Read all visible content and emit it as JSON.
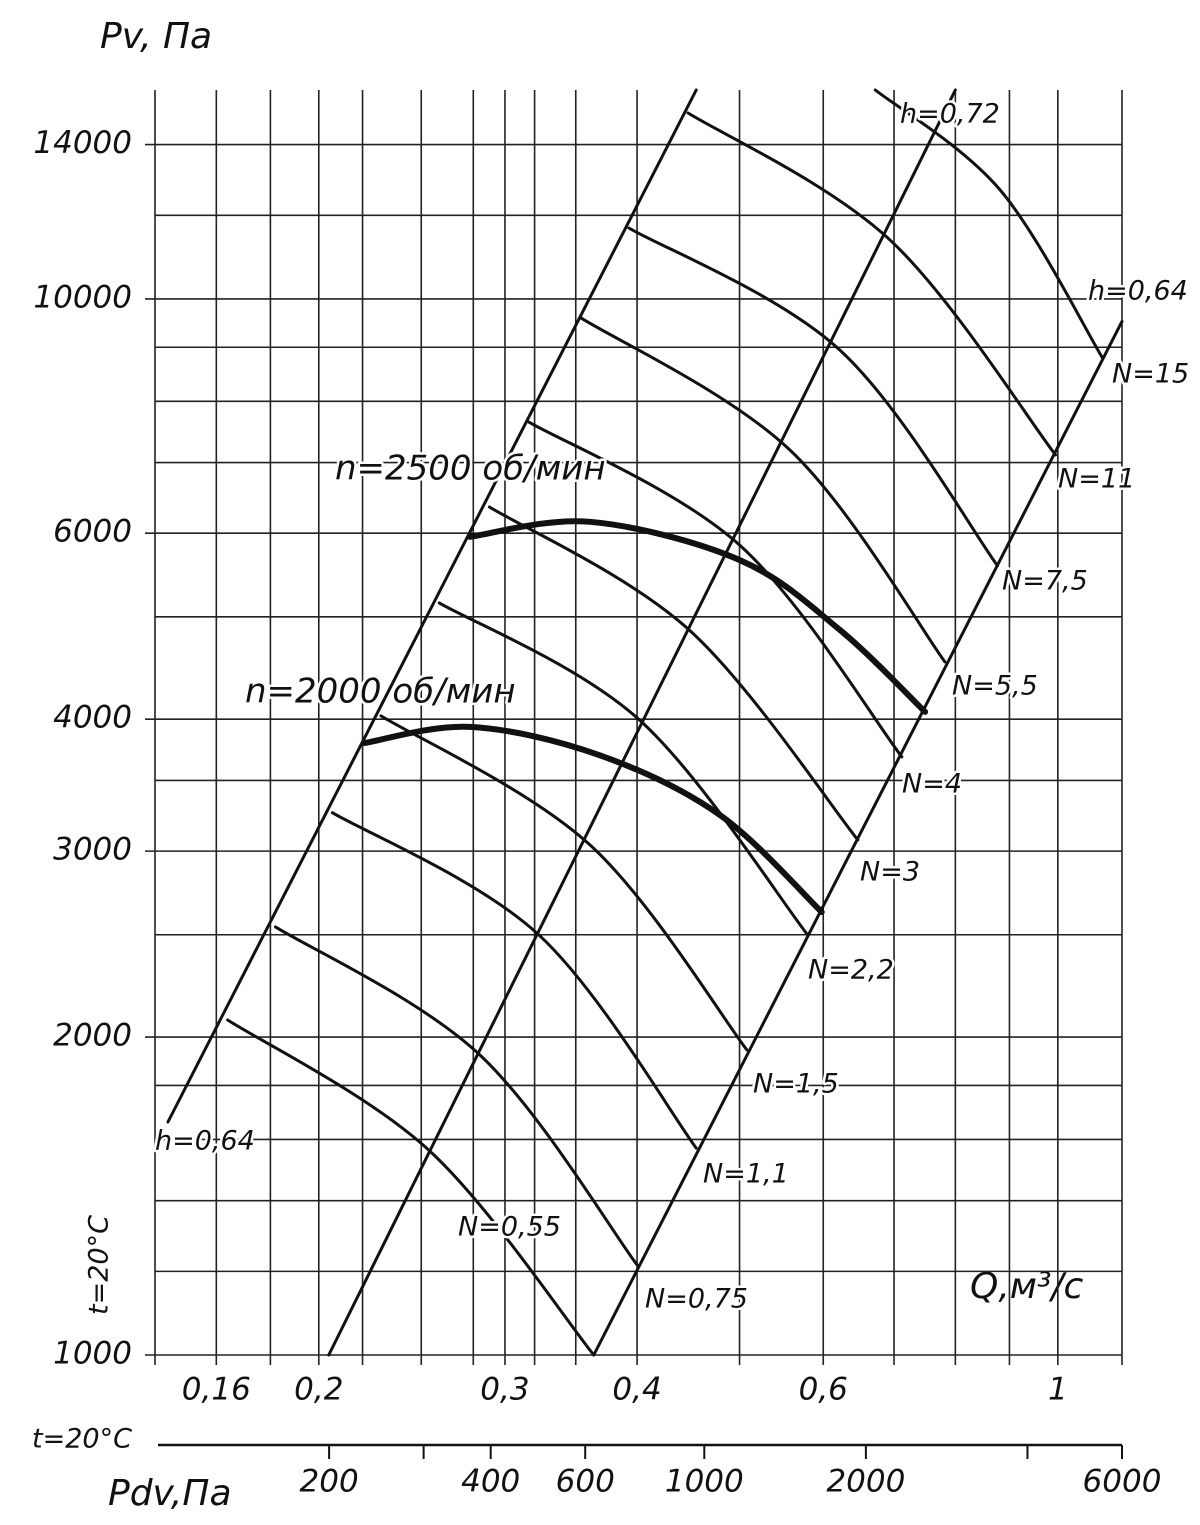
{
  "chart_data": {
    "type": "line",
    "title": "Pv, Па",
    "x_label": "Q,м³/с",
    "note": "t=20°C",
    "xlog": true,
    "ylog": true,
    "grid": true,
    "color": "#111",
    "xlim": [
      0.14,
      1.15
    ],
    "ylim": [
      1000,
      15770
    ],
    "xticks": [
      {
        "value": 0.16,
        "label": "0,16"
      },
      {
        "value": 0.2,
        "label": "0,2"
      },
      {
        "value": 0.3,
        "label": "0,3"
      },
      {
        "value": 0.4,
        "label": "0,4"
      },
      {
        "value": 0.6,
        "label": "0,6"
      },
      1
    ],
    "xgrid": [
      0.18,
      0.22,
      0.25,
      0.28,
      0.32,
      0.35,
      0.5,
      0.7,
      0.8,
      0.9
    ],
    "yticks": [
      1000,
      2000,
      3000,
      4000,
      6000,
      10000,
      14000
    ],
    "ygrid": [
      1200,
      1400,
      1600,
      1800,
      2500,
      3500,
      5000,
      7000,
      8000,
      9000,
      12000
    ],
    "secondary_x": {
      "label": "Pdv,Па",
      "note": "t=20°C",
      "lim": [
        96,
        6000
      ],
      "ticks": [
        200,
        400,
        600,
        1000,
        2000,
        6000
      ],
      "minor": [
        300,
        4000
      ]
    },
    "efficiency_lines": [
      {
        "name": "h=0,64",
        "x": [
          0.144,
          0.455
        ],
        "y": [
          1662,
          15770
        ]
      },
      {
        "name": "h=0,72",
        "x": [
          0.2044,
          0.8
        ],
        "y": [
          1000,
          15770
        ]
      },
      {
        "name": "h=0,64",
        "x": [
          0.364,
          1.15
        ],
        "y": [
          1000,
          9520
        ]
      }
    ],
    "series": [
      {
        "name": "N=0,55",
        "x": [
          0.164,
          0.254,
          0.364
        ],
        "y": [
          2076,
          1564,
          1000
        ]
      },
      {
        "name": "N=0,75",
        "x": [
          0.182,
          0.284,
          0.4
        ],
        "y": [
          2543,
          1924,
          1217
        ]
      },
      {
        "name": "N=1,1",
        "x": [
          0.206,
          0.323,
          0.455
        ],
        "y": [
          3262,
          2499,
          1570
        ]
      },
      {
        "name": "N=1,5",
        "x": [
          0.229,
          0.361,
          0.508
        ],
        "y": [
          4029,
          3041,
          1945
        ]
      },
      {
        "name": "N=2,2",
        "x": [
          0.26,
          0.402,
          0.58
        ],
        "y": [
          5154,
          3994,
          2499
        ]
      },
      {
        "name": "N=3",
        "x": [
          0.29,
          0.448,
          0.647
        ],
        "y": [
          6353,
          4860,
          3074
        ]
      },
      {
        "name": "N=4",
        "x": [
          0.316,
          0.5,
          0.712
        ],
        "y": [
          7646,
          5848,
          3684
        ]
      },
      {
        "name": "N=5,5",
        "x": [
          0.354,
          0.558,
          0.782
        ],
        "y": [
          9594,
          7194,
          4532
        ]
      },
      {
        "name": "N=7,5",
        "x": [
          0.393,
          0.622,
          0.877
        ],
        "y": [
          11670,
          8947,
          5588
        ]
      },
      {
        "name": "N=11",
        "x": [
          0.447,
          0.694,
          0.995
        ],
        "y": [
          15000,
          11370,
          7117
        ]
      },
      {
        "name": "N=15",
        "x": [
          0.672,
          0.882,
          1.102
        ],
        "y": [
          15770,
          12680,
          8795
        ]
      }
    ],
    "speed_curves": [
      {
        "name": "n=2000 об/мин",
        "x": [
          0.221,
          0.278,
          0.368,
          0.479,
          0.598
        ],
        "y": [
          3798,
          3933,
          3700,
          3246,
          2627
        ]
      },
      {
        "name": "n=2500 об/мин",
        "x": [
          0.278,
          0.361,
          0.5,
          0.622,
          0.749
        ],
        "y": [
          5953,
          6151,
          5660,
          4860,
          4064
        ]
      }
    ]
  }
}
